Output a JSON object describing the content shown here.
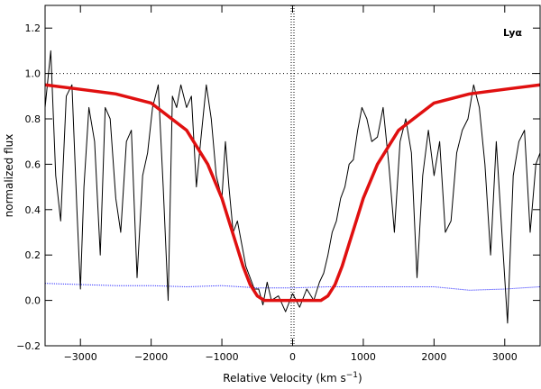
{
  "chart_data": {
    "type": "line",
    "title": "",
    "xlabel": "Relative Velocity  (km  s",
    "xlabel_sup": "−1",
    "xlabel_close": ")",
    "ylabel": "normalized flux",
    "annotation": "Lyα",
    "xlim": [
      -3500,
      3500
    ],
    "ylim": [
      -0.2,
      1.3
    ],
    "xticks": [
      -3000,
      -2000,
      -1000,
      0,
      1000,
      2000,
      3000
    ],
    "xtick_labels": [
      "−3000",
      "−2000",
      "−1000",
      "0",
      "1000",
      "2000",
      "3000"
    ],
    "yticks": [
      -0.2,
      0.0,
      0.2,
      0.4,
      0.6,
      0.8,
      1.0,
      1.2
    ],
    "ytick_labels": [
      "−0.2",
      "0.0",
      "0.2",
      "0.4",
      "0.6",
      "0.8",
      "1.0",
      "1.2"
    ],
    "reference_lines": {
      "horizontal_y": 1.0,
      "vertical_x": 0
    },
    "grid": false,
    "series": [
      {
        "color": "#000000",
        "x": [
          -3500,
          -3420,
          -3350,
          -3280,
          -3200,
          -3120,
          -3050,
          -3000,
          -2950,
          -2880,
          -2800,
          -2720,
          -2650,
          -2580,
          -2500,
          -2430,
          -2350,
          -2280,
          -2200,
          -2120,
          -2050,
          -1980,
          -1900,
          -1830,
          -1760,
          -1700,
          -1640,
          -1580,
          -1500,
          -1430,
          -1360,
          -1300,
          -1220,
          -1150,
          -1080,
          -1000,
          -950,
          -900,
          -840,
          -780,
          -720,
          -660,
          -600,
          -540,
          -480,
          -420,
          -360,
          -300,
          -200,
          -100,
          0,
          100,
          200,
          300,
          380,
          440,
          500,
          560,
          620,
          680,
          740,
          800,
          860,
          920,
          980,
          1050,
          1120,
          1200,
          1280,
          1360,
          1440,
          1520,
          1600,
          1680,
          1760,
          1840,
          1920,
          2000,
          2080,
          2160,
          2240,
          2320,
          2400,
          2480,
          2560,
          2640,
          2720,
          2800,
          2880,
          2960,
          3040,
          3120,
          3200,
          3280,
          3360,
          3440,
          3500
        ],
        "y": [
          0.85,
          1.1,
          0.55,
          0.35,
          0.9,
          0.95,
          0.4,
          0.05,
          0.5,
          0.85,
          0.7,
          0.2,
          0.85,
          0.8,
          0.45,
          0.3,
          0.7,
          0.75,
          0.1,
          0.55,
          0.65,
          0.85,
          0.95,
          0.5,
          0.0,
          0.9,
          0.85,
          0.95,
          0.85,
          0.9,
          0.5,
          0.7,
          0.95,
          0.8,
          0.55,
          0.45,
          0.7,
          0.5,
          0.3,
          0.35,
          0.25,
          0.15,
          0.1,
          0.05,
          0.05,
          -0.02,
          0.08,
          0.0,
          0.02,
          -0.05,
          0.03,
          -0.03,
          0.05,
          0.0,
          0.08,
          0.12,
          0.2,
          0.3,
          0.35,
          0.45,
          0.5,
          0.6,
          0.62,
          0.75,
          0.85,
          0.8,
          0.7,
          0.72,
          0.85,
          0.6,
          0.3,
          0.7,
          0.8,
          0.65,
          0.1,
          0.55,
          0.75,
          0.55,
          0.7,
          0.3,
          0.35,
          0.65,
          0.75,
          0.8,
          0.95,
          0.85,
          0.6,
          0.2,
          0.7,
          0.3,
          -0.1,
          0.55,
          0.7,
          0.75,
          0.3,
          0.6,
          0.65
        ]
      },
      {
        "color": "#e01010",
        "x": [
          -3500,
          -3000,
          -2500,
          -2000,
          -1500,
          -1200,
          -1000,
          -900,
          -800,
          -700,
          -600,
          -500,
          -400,
          -300,
          0,
          300,
          400,
          500,
          600,
          700,
          800,
          900,
          1000,
          1200,
          1500,
          2000,
          2500,
          3000,
          3500
        ],
        "y": [
          0.95,
          0.93,
          0.91,
          0.87,
          0.75,
          0.6,
          0.45,
          0.35,
          0.25,
          0.15,
          0.07,
          0.02,
          0.0,
          0.0,
          0.0,
          0.0,
          0.0,
          0.02,
          0.07,
          0.15,
          0.25,
          0.35,
          0.45,
          0.6,
          0.75,
          0.87,
          0.91,
          0.93,
          0.95
        ]
      },
      {
        "color": "#2a2aff",
        "x": [
          -3500,
          -3000,
          -2500,
          -2000,
          -1500,
          -1000,
          -500,
          0,
          500,
          1000,
          1500,
          2000,
          2500,
          3000,
          3500
        ],
        "y": [
          0.075,
          0.07,
          0.065,
          0.065,
          0.06,
          0.065,
          0.055,
          0.055,
          0.06,
          0.06,
          0.06,
          0.06,
          0.045,
          0.05,
          0.06
        ]
      }
    ]
  }
}
